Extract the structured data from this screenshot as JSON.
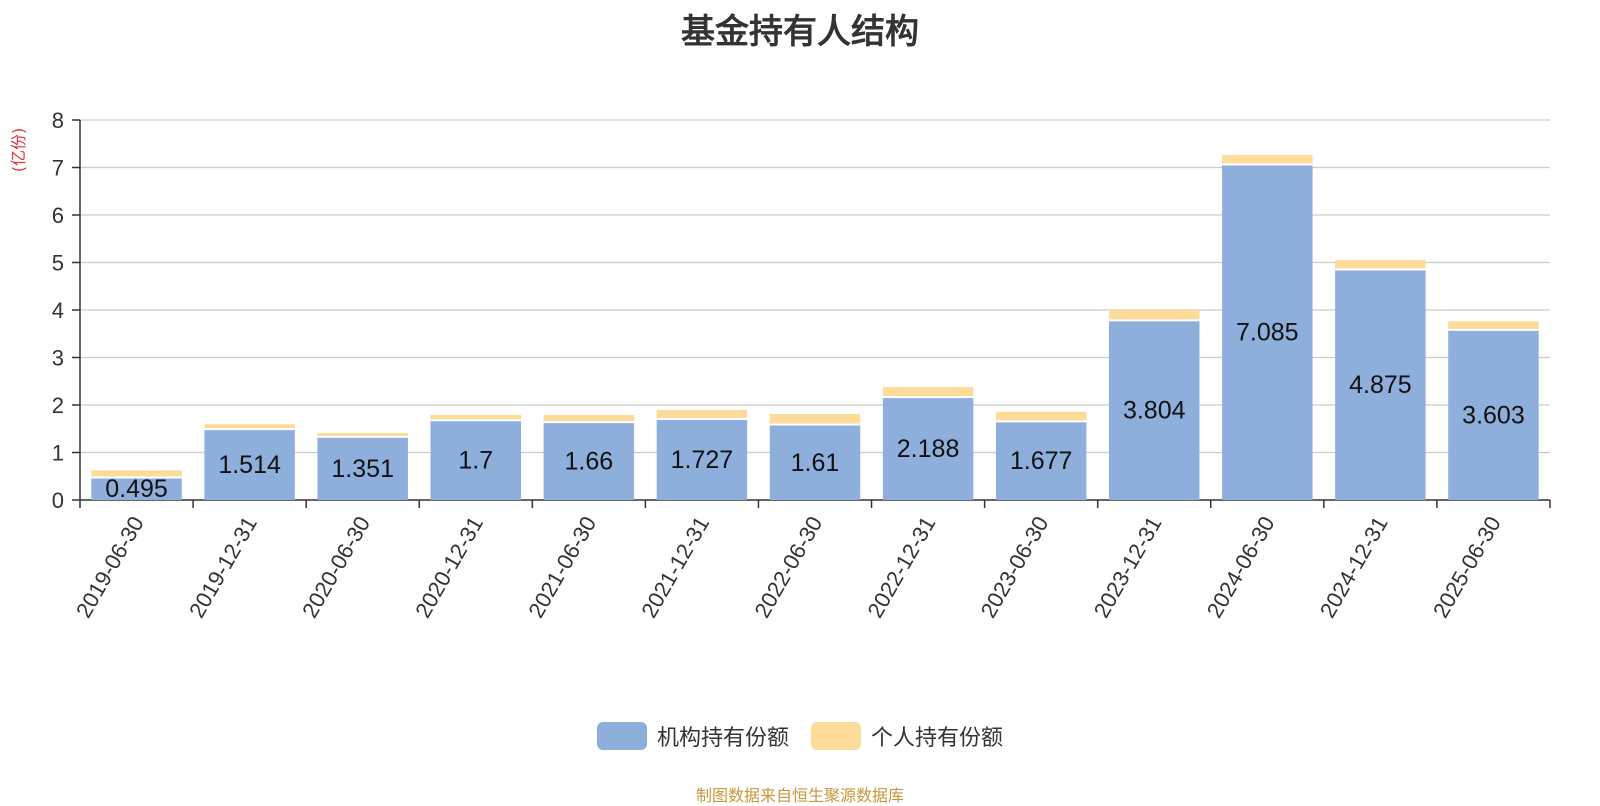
{
  "chart_data": {
    "type": "bar",
    "stacked": true,
    "title": "基金持有人结构",
    "ylabel": "(亿份)",
    "ylim": [
      0,
      8
    ],
    "yticks": [
      0,
      1,
      2,
      3,
      4,
      5,
      6,
      7,
      8
    ],
    "grid": true,
    "legend_position": "bottom",
    "categories": [
      "2019-06-30",
      "2019-12-31",
      "2020-06-30",
      "2020-12-31",
      "2021-06-30",
      "2021-12-31",
      "2022-06-30",
      "2022-12-31",
      "2023-06-30",
      "2023-12-31",
      "2024-06-30",
      "2024-12-31",
      "2025-06-30"
    ],
    "series": [
      {
        "name": "机构持有份额",
        "color": "#8eaedb",
        "labels": true,
        "values": [
          0.495,
          1.514,
          1.351,
          1.7,
          1.66,
          1.727,
          1.61,
          2.188,
          1.677,
          3.804,
          7.085,
          4.875,
          3.603
        ]
      },
      {
        "name": "个人持有份额",
        "color": "#fddb98",
        "labels": false,
        "values": [
          0.13,
          0.08,
          0.06,
          0.09,
          0.13,
          0.17,
          0.2,
          0.19,
          0.18,
          0.2,
          0.18,
          0.18,
          0.16
        ]
      }
    ],
    "source_note": "制图数据来自恒生聚源数据库"
  }
}
